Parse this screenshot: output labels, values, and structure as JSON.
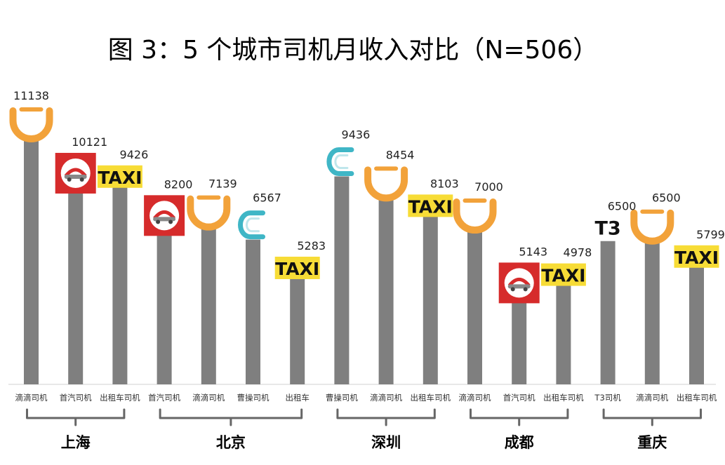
{
  "chart_data": {
    "type": "bar",
    "title": "图 3：5 个城市司机月收入对比（N=506）",
    "ylim": [
      0,
      11500
    ],
    "bar_color": "#7f7f7f",
    "categories": [
      "滴滴司机",
      "首汽司机",
      "出租车司机",
      "首汽司机",
      "滴滴司机",
      "曹操司机",
      "出租车",
      "曹操司机",
      "滴滴司机",
      "出租车司机",
      "滴滴司机",
      "首汽司机",
      "出租车司机",
      "T3司机",
      "滴滴司机",
      "出租车司机"
    ],
    "values": [
      11138,
      10121,
      9426,
      8200,
      7139,
      6567,
      5283,
      9436,
      8454,
      8103,
      7000,
      5143,
      4978,
      6500,
      6500,
      5799
    ],
    "value_labels": [
      "11138",
      "10121",
      "9426",
      "8200",
      "7139",
      "6567",
      "5283",
      "9436",
      "8454",
      "8103",
      "7000",
      "5143",
      "4978",
      "6500",
      "6500",
      "5799"
    ],
    "logos": [
      "didi-icon",
      "shouqi-icon",
      "taxi-icon",
      "shouqi-icon",
      "didi-icon",
      "caocao-icon",
      "taxi-icon",
      "caocao-icon",
      "didi-icon",
      "taxi-icon",
      "didi-icon",
      "shouqi-icon",
      "taxi-icon",
      "t3-icon",
      "didi-icon",
      "taxi-icon"
    ],
    "groups": [
      {
        "name": "上海",
        "start": 0,
        "end": 2
      },
      {
        "name": "北京",
        "start": 3,
        "end": 6
      },
      {
        "name": "深圳",
        "start": 7,
        "end": 9
      },
      {
        "name": "成都",
        "start": 10,
        "end": 12
      },
      {
        "name": "重庆",
        "start": 13,
        "end": 15
      }
    ],
    "logo_text": {
      "taxi": "TAXI",
      "t3": "T3"
    },
    "colors": {
      "didi": "#f2a23a",
      "shouqi": "#d62b2b",
      "taxi": "#f7dc36",
      "caocao": "#3fb6c6"
    }
  }
}
